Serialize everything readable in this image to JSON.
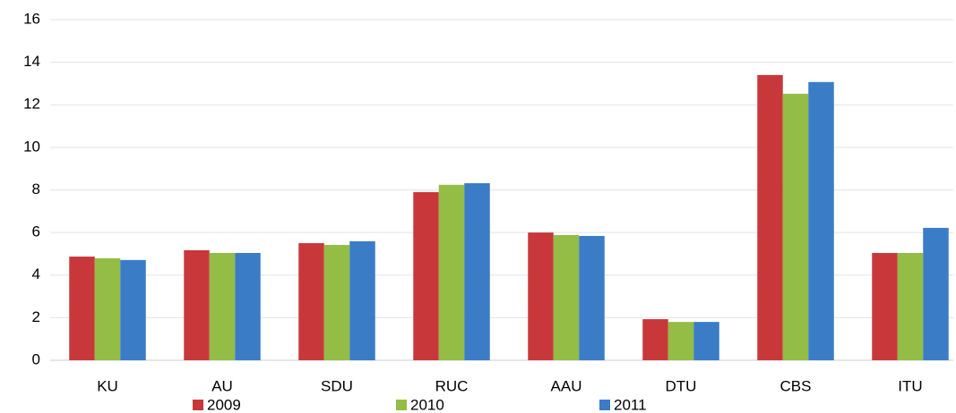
{
  "chart_data": {
    "type": "bar",
    "categories": [
      "KU",
      "AU",
      "SDU",
      "RUC",
      "AAU",
      "DTU",
      "CBS",
      "ITU"
    ],
    "series": [
      {
        "name": "2009",
        "color": "#c8383a",
        "values": [
          4.87,
          5.17,
          5.5,
          7.9,
          6.0,
          1.93,
          13.4,
          5.04
        ]
      },
      {
        "name": "2010",
        "color": "#93bd44",
        "values": [
          4.79,
          5.04,
          5.42,
          8.24,
          5.88,
          1.8,
          12.52,
          5.04
        ]
      },
      {
        "name": "2011",
        "color": "#3a7cc6",
        "values": [
          4.71,
          5.04,
          5.59,
          8.32,
          5.84,
          1.8,
          13.07,
          6.22
        ]
      }
    ],
    "ylim": [
      0,
      16
    ],
    "yticks": [
      0,
      2,
      4,
      6,
      8,
      10,
      12,
      14,
      16
    ],
    "grid": true,
    "legend": "bottom"
  }
}
